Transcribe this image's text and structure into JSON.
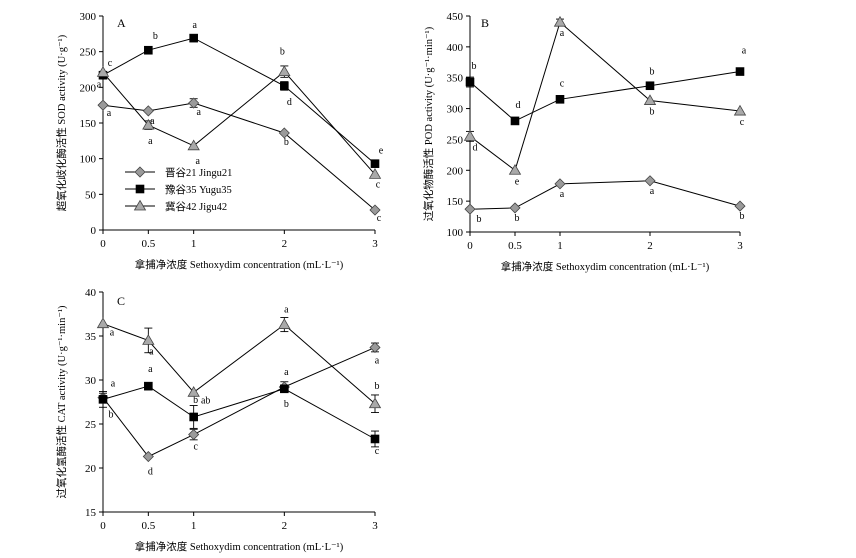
{
  "chart_data": [
    {
      "type": "line",
      "panel": "A",
      "x": [
        "0",
        "0.5",
        "1",
        "2",
        "3"
      ],
      "xlabel": "拿捕净浓度 Sethoxydim concentration (mL·L⁻¹)",
      "ylabel": "超氧化歧化酶活性 SOD activity (U·g⁻¹)",
      "ylim": [
        0,
        300
      ],
      "yticks": [
        0,
        50,
        100,
        150,
        200,
        250,
        300
      ],
      "series": [
        {
          "name": "晋谷21 Jingu21",
          "marker": "diamond",
          "values": [
            175,
            167,
            178,
            136,
            28
          ],
          "err": [
            0,
            0,
            6,
            0,
            0
          ],
          "labels": [
            "a",
            "a",
            "a",
            "b",
            "c"
          ]
        },
        {
          "name": "豫谷35 Yugu35",
          "marker": "square",
          "values": [
            217,
            252,
            269,
            202,
            93
          ],
          "err": [
            0,
            0,
            0,
            6,
            0
          ],
          "labels": [
            "c",
            "b",
            "a",
            "d",
            "e"
          ]
        },
        {
          "name": "冀谷42 Jigu42",
          "marker": "triangle",
          "values": [
            221,
            147,
            118,
            222,
            78
          ],
          "err": [
            0,
            6,
            0,
            8,
            0
          ],
          "labels": [
            "a",
            "a",
            "a",
            "b",
            "c"
          ]
        }
      ],
      "legend": "center-left"
    },
    {
      "type": "line",
      "panel": "B",
      "x": [
        "0",
        "0.5",
        "1",
        "2",
        "3"
      ],
      "xlabel": "拿捕净浓度 Sethoxydim concentration (mL·L⁻¹)",
      "ylabel": "过氧化物酶活性 POD activity (U·g⁻¹·min⁻¹)",
      "ylim": [
        100,
        450
      ],
      "yticks": [
        100,
        150,
        200,
        250,
        300,
        350,
        400,
        450
      ],
      "series": [
        {
          "name": "晋谷21 Jingu21",
          "marker": "diamond",
          "values": [
            137,
            139,
            178,
            183,
            142
          ],
          "err": [
            0,
            0,
            0,
            0,
            0
          ],
          "labels": [
            "b",
            "b",
            "a",
            "a",
            "b"
          ]
        },
        {
          "name": "豫谷35 Yugu35",
          "marker": "square",
          "values": [
            343,
            280,
            315,
            337,
            360
          ],
          "err": [
            8,
            0,
            0,
            0,
            0
          ],
          "labels": [
            "b",
            "d",
            "c",
            "b",
            "a"
          ]
        },
        {
          "name": "冀谷42 Jigu42",
          "marker": "triangle",
          "values": [
            255,
            200,
            440,
            313,
            296
          ],
          "err": [
            8,
            0,
            5,
            0,
            0
          ],
          "labels": [
            "d",
            "e",
            "a",
            "b",
            "c"
          ]
        }
      ]
    },
    {
      "type": "line",
      "panel": "C",
      "x": [
        "0",
        "0.5",
        "1",
        "2",
        "3"
      ],
      "xlabel": "拿捕净浓度 Sethoxydim concentration (mL·L⁻¹)",
      "ylabel": "过氧化氢酶活性 CAT activity (U·g⁻¹·min⁻¹)",
      "ylim": [
        15,
        40
      ],
      "yticks": [
        15,
        20,
        25,
        30,
        35,
        40
      ],
      "series": [
        {
          "name": "晋谷21 Jingu21",
          "marker": "diamond",
          "values": [
            28,
            21.3,
            23.8,
            29.2,
            33.7
          ],
          "err": [
            0.5,
            0,
            0.6,
            0.6,
            0.5
          ],
          "labels": [
            "b",
            "d",
            "c",
            "b",
            "a"
          ]
        },
        {
          "name": "豫谷35 Yugu35",
          "marker": "square",
          "values": [
            27.8,
            29.3,
            25.8,
            29,
            23.3
          ],
          "err": [
            0.9,
            0,
            1.3,
            0,
            0.9
          ],
          "labels": [
            "a",
            "a",
            "b",
            "a",
            "c"
          ]
        },
        {
          "name": "冀谷42 Jigu42",
          "marker": "triangle",
          "values": [
            36.4,
            34.5,
            28.6,
            36.3,
            27.3
          ],
          "err": [
            0,
            1.4,
            0,
            0.8,
            1.0
          ],
          "labels": [
            "a",
            "a",
            "ab",
            "a",
            "b"
          ]
        }
      ]
    }
  ]
}
